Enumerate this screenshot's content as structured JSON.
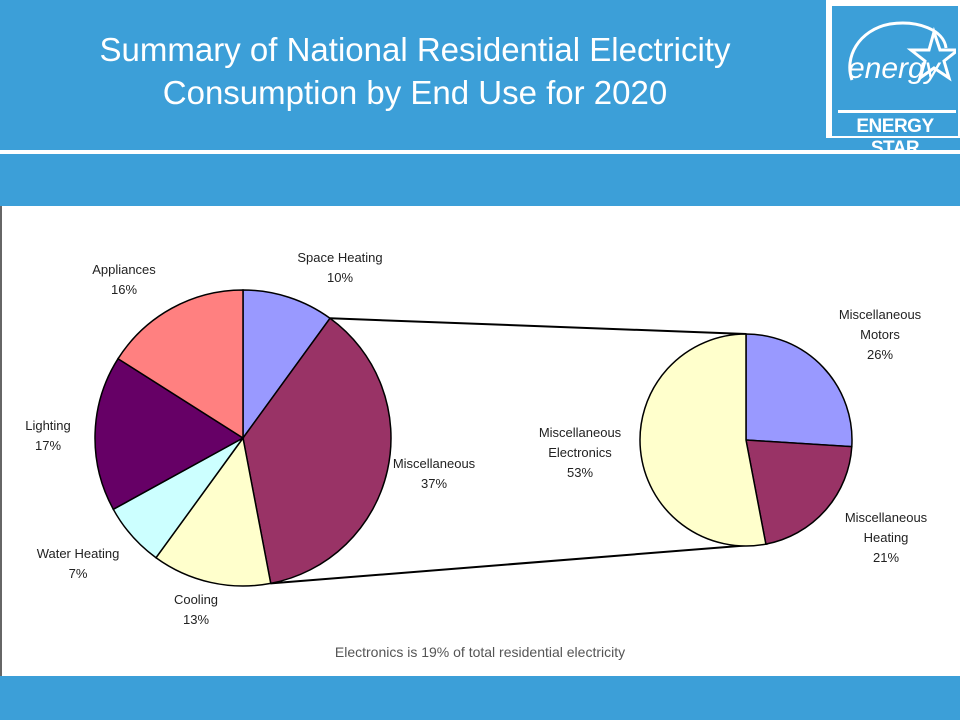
{
  "slide": {
    "title_line1": "Summary of National Residential Electricity",
    "title_line2": "Consumption by End Use for 2020",
    "caption": "Electronics is 19% of total residential electricity",
    "logo_script": "energy",
    "logo_text": "ENERGY STAR"
  },
  "colors": {
    "background": "#3c9fd8",
    "panel": "#ffffff"
  },
  "chart_data": [
    {
      "type": "pie",
      "title": "",
      "slices": [
        {
          "label": "Space Heating",
          "pct_label": "10%",
          "value": 10,
          "color": "#9999ff"
        },
        {
          "label": "Miscellaneous",
          "pct_label": "37%",
          "value": 37,
          "color": "#993366"
        },
        {
          "label": "Cooling",
          "pct_label": "13%",
          "value": 13,
          "color": "#ffffcc"
        },
        {
          "label": "Water Heating",
          "pct_label": "7%",
          "value": 7,
          "color": "#ccffff"
        },
        {
          "label": "Lighting",
          "pct_label": "17%",
          "value": 17,
          "color": "#660066"
        },
        {
          "label": "Appliances",
          "pct_label": "16%",
          "value": 16,
          "color": "#ff8080"
        }
      ]
    },
    {
      "type": "pie",
      "title": "",
      "slices": [
        {
          "label": [
            "Miscellaneous",
            "Motors"
          ],
          "pct_label": "26%",
          "value": 26,
          "color": "#9999ff"
        },
        {
          "label": [
            "Miscellaneous",
            "Heating"
          ],
          "pct_label": "21%",
          "value": 21,
          "color": "#993366"
        },
        {
          "label": [
            "Miscellaneous",
            "Electronics"
          ],
          "pct_label": "53%",
          "value": 53,
          "color": "#ffffcc"
        }
      ]
    }
  ]
}
